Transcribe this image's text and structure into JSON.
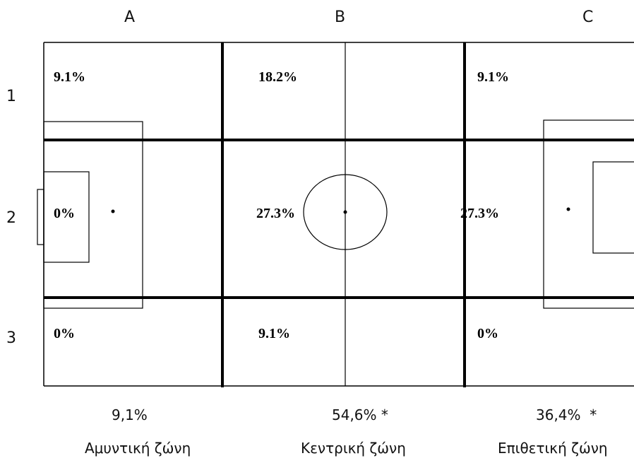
{
  "columns": [
    "A",
    "B",
    "C"
  ],
  "rows": [
    "1",
    "2",
    "3"
  ],
  "cells": {
    "A1": "9.1%",
    "B1": "18.2%",
    "C1": "9.1%",
    "A2": "0%",
    "B2": "27.3%",
    "C2": "27.3%",
    "A3": "0%",
    "B3": "9.1%",
    "C3": "0%"
  },
  "zone_totals": [
    "9,1%",
    "54,6% *",
    "36,4%  *"
  ],
  "zone_labels": [
    "Αμυντική ζώνη",
    "Κεντρική ζώνη",
    "Επιθετική ζώνη"
  ],
  "colors": {
    "line": "#000000",
    "background": "#ffffff"
  }
}
